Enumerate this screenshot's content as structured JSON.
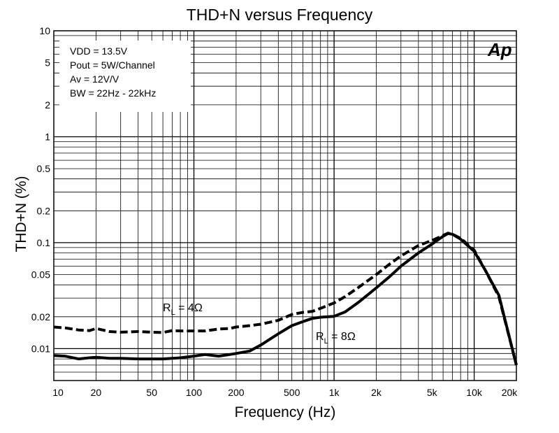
{
  "chart_data": {
    "type": "line",
    "title": "THD+N versus Frequency",
    "xlabel": "Frequency (Hz)",
    "ylabel": "THD+N (%)",
    "x_scale": "log",
    "y_scale": "log",
    "xlim": [
      10,
      20000
    ],
    "ylim": [
      0.005,
      10
    ],
    "grid": true,
    "x_ticks": [
      {
        "value": 10,
        "label": "10"
      },
      {
        "value": 20,
        "label": "20"
      },
      {
        "value": 50,
        "label": "50"
      },
      {
        "value": 100,
        "label": "100"
      },
      {
        "value": 200,
        "label": "200"
      },
      {
        "value": 500,
        "label": "500"
      },
      {
        "value": 1000,
        "label": "1k"
      },
      {
        "value": 2000,
        "label": "2k"
      },
      {
        "value": 5000,
        "label": "5k"
      },
      {
        "value": 10000,
        "label": "10k"
      },
      {
        "value": 20000,
        "label": "20k"
      }
    ],
    "y_ticks": [
      {
        "value": 10,
        "label": "10"
      },
      {
        "value": 5,
        "label": "5"
      },
      {
        "value": 2,
        "label": "2"
      },
      {
        "value": 1,
        "label": "1"
      },
      {
        "value": 0.5,
        "label": "0.5"
      },
      {
        "value": 0.2,
        "label": "0.2"
      },
      {
        "value": 0.1,
        "label": "0.1"
      },
      {
        "value": 0.05,
        "label": "0.05"
      },
      {
        "value": 0.02,
        "label": "0.02"
      },
      {
        "value": 0.01,
        "label": "0.01"
      }
    ],
    "conditions": [
      "VDD = 13.5V",
      "Pout = 5W/Channel",
      "Av = 12V/V",
      "BW = 22Hz - 22kHz"
    ],
    "logo": "Ap",
    "series": [
      {
        "name": "RL = 4Ω",
        "label_main": "R",
        "label_sub": "L",
        "label_rest": " = 4Ω",
        "style": "dashed",
        "color": "#000000",
        "x": [
          10,
          12,
          15,
          18,
          20,
          25,
          30,
          40,
          50,
          60,
          70,
          80,
          100,
          120,
          150,
          180,
          200,
          250,
          300,
          400,
          500,
          600,
          700,
          800,
          1000,
          1200,
          1500,
          2000,
          2500,
          3000,
          4000,
          5000,
          6000,
          6500,
          7000,
          8000,
          10000,
          12000,
          15000,
          20000
        ],
        "y": [
          0.016,
          0.0157,
          0.015,
          0.0148,
          0.0155,
          0.0145,
          0.0143,
          0.0145,
          0.0143,
          0.0142,
          0.0148,
          0.0147,
          0.0147,
          0.0147,
          0.0153,
          0.0155,
          0.016,
          0.0165,
          0.017,
          0.0185,
          0.021,
          0.022,
          0.0225,
          0.024,
          0.027,
          0.031,
          0.038,
          0.05,
          0.063,
          0.075,
          0.094,
          0.105,
          0.117,
          0.123,
          0.12,
          0.11,
          0.085,
          0.055,
          0.031,
          0.007
        ]
      },
      {
        "name": "RL = 8Ω",
        "label_main": "R",
        "label_sub": "L",
        "label_rest": " = 8Ω",
        "style": "solid",
        "color": "#000000",
        "x": [
          10,
          12,
          15,
          18,
          20,
          25,
          30,
          40,
          50,
          60,
          70,
          80,
          100,
          120,
          150,
          180,
          200,
          250,
          300,
          400,
          500,
          600,
          700,
          800,
          1000,
          1200,
          1500,
          2000,
          2500,
          3000,
          4000,
          5000,
          6000,
          6500,
          7000,
          8000,
          10000,
          12000,
          15000,
          20000
        ],
        "y": [
          0.0086,
          0.0085,
          0.008,
          0.0082,
          0.0083,
          0.0081,
          0.0081,
          0.008,
          0.008,
          0.008,
          0.0081,
          0.0082,
          0.0085,
          0.0088,
          0.0085,
          0.0088,
          0.009,
          0.0095,
          0.0108,
          0.0138,
          0.0165,
          0.018,
          0.0193,
          0.0198,
          0.0202,
          0.0222,
          0.0275,
          0.0375,
          0.048,
          0.06,
          0.08,
          0.097,
          0.115,
          0.122,
          0.12,
          0.108,
          0.083,
          0.055,
          0.032,
          0.007
        ]
      }
    ]
  }
}
